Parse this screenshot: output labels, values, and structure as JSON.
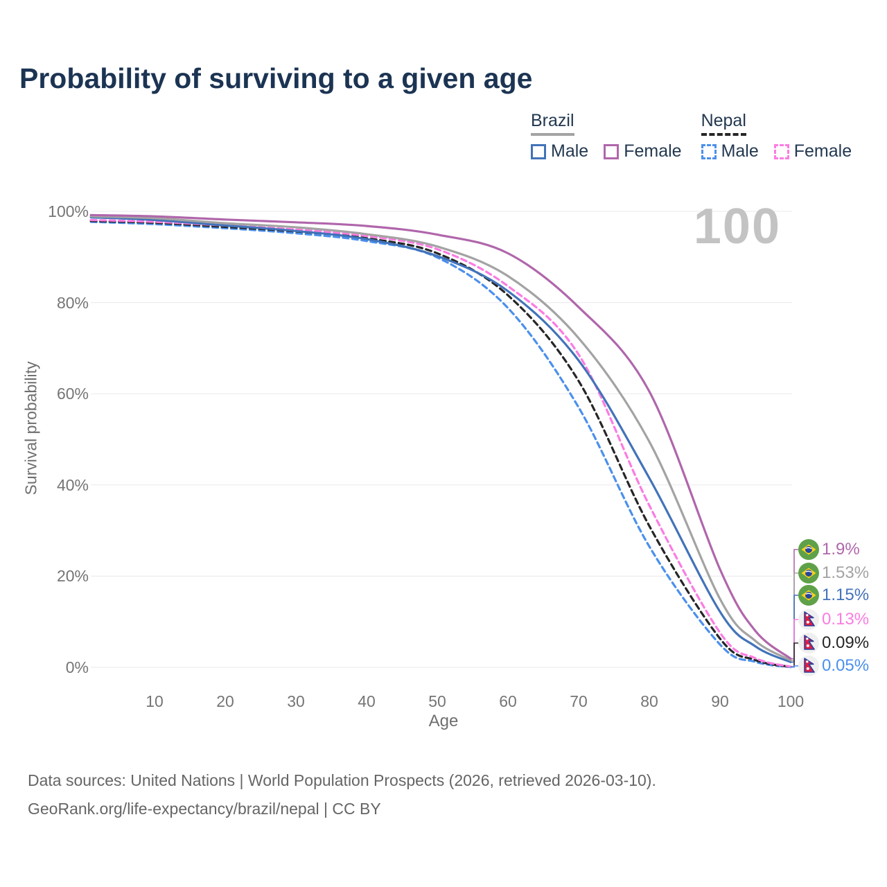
{
  "title": "Probability of surviving to a given age",
  "watermark": "100",
  "legend": {
    "groups": [
      {
        "country": "Brazil",
        "line_style": "solid",
        "line_color": "#a3a3a3",
        "items": [
          {
            "label": "Male",
            "color": "#4273b9",
            "dashed": false
          },
          {
            "label": "Female",
            "color": "#b066ab",
            "dashed": false
          }
        ]
      },
      {
        "country": "Nepal",
        "line_style": "dashed",
        "line_color": "#262626",
        "items": [
          {
            "label": "Male",
            "color": "#4b90ec",
            "dashed": true
          },
          {
            "label": "Female",
            "color": "#fb7ce2",
            "dashed": true
          }
        ]
      }
    ]
  },
  "chart_data": {
    "type": "line",
    "title": "Probability of surviving to a given age",
    "xlabel": "Age",
    "ylabel": "Survival probability",
    "xlim": [
      0,
      100
    ],
    "ylim": [
      0,
      100
    ],
    "xticks": [
      10,
      20,
      30,
      40,
      50,
      60,
      70,
      80,
      90,
      100
    ],
    "yticks": [
      0,
      20,
      40,
      60,
      80,
      100
    ],
    "ytick_suffix": "%",
    "grid": "horizontal",
    "legend_position": "top-right",
    "x": [
      1,
      10,
      20,
      30,
      40,
      50,
      60,
      70,
      80,
      90,
      95,
      100
    ],
    "series": [
      {
        "name": "Brazil Female",
        "country": "Brazil",
        "sex": "Female",
        "color": "#b066ab",
        "dashed": false,
        "flag": "brazil",
        "end_label": "1.9%",
        "values": [
          99.2,
          98.9,
          98.2,
          97.6,
          96.8,
          94.9,
          90.8,
          79.0,
          60.5,
          21.5,
          8.0,
          1.9
        ]
      },
      {
        "name": "Brazil Both sexes",
        "country": "Brazil",
        "sex": "All",
        "color": "#a3a3a3",
        "dashed": false,
        "flag": "brazil",
        "end_label": "1.53%",
        "values": [
          98.9,
          98.5,
          97.4,
          96.5,
          95.0,
          92.3,
          85.8,
          72.2,
          49.5,
          15.0,
          5.8,
          1.53
        ]
      },
      {
        "name": "Brazil Male",
        "country": "Brazil",
        "sex": "Male",
        "color": "#4273b9",
        "dashed": false,
        "flag": "brazil",
        "end_label": "1.15%",
        "values": [
          98.7,
          98.1,
          96.9,
          95.7,
          93.9,
          90.2,
          82.5,
          67.3,
          41.5,
          12.2,
          4.6,
          1.15
        ]
      },
      {
        "name": "Nepal Female",
        "country": "Nepal",
        "sex": "Female",
        "color": "#fb7ce2",
        "dashed": true,
        "flag": "nepal",
        "end_label": "0.13%",
        "values": [
          98.1,
          97.7,
          96.9,
          96.0,
          94.6,
          91.7,
          83.6,
          68.6,
          35.5,
          7.6,
          2.0,
          0.13
        ]
      },
      {
        "name": "Nepal Both sexes",
        "country": "Nepal",
        "sex": "All",
        "color": "#262626",
        "dashed": true,
        "flag": "nepal",
        "end_label": "0.09%",
        "values": [
          97.9,
          97.5,
          96.6,
          95.6,
          94.1,
          90.8,
          81.6,
          62.8,
          31.0,
          6.3,
          1.6,
          0.09
        ]
      },
      {
        "name": "Nepal Male",
        "country": "Nepal",
        "sex": "Male",
        "color": "#4b90ec",
        "dashed": true,
        "flag": "nepal",
        "end_label": "0.05%",
        "values": [
          97.7,
          97.2,
          96.3,
          95.2,
          93.5,
          89.9,
          78.8,
          57.0,
          26.5,
          5.0,
          1.2,
          0.05
        ]
      }
    ]
  },
  "footer": {
    "line1": "Data sources: United Nations | World Population Prospects (2026, retrieved 2026-03-10).",
    "line2": "GeoRank.org/life-expectancy/brazil/nepal | CC BY"
  }
}
